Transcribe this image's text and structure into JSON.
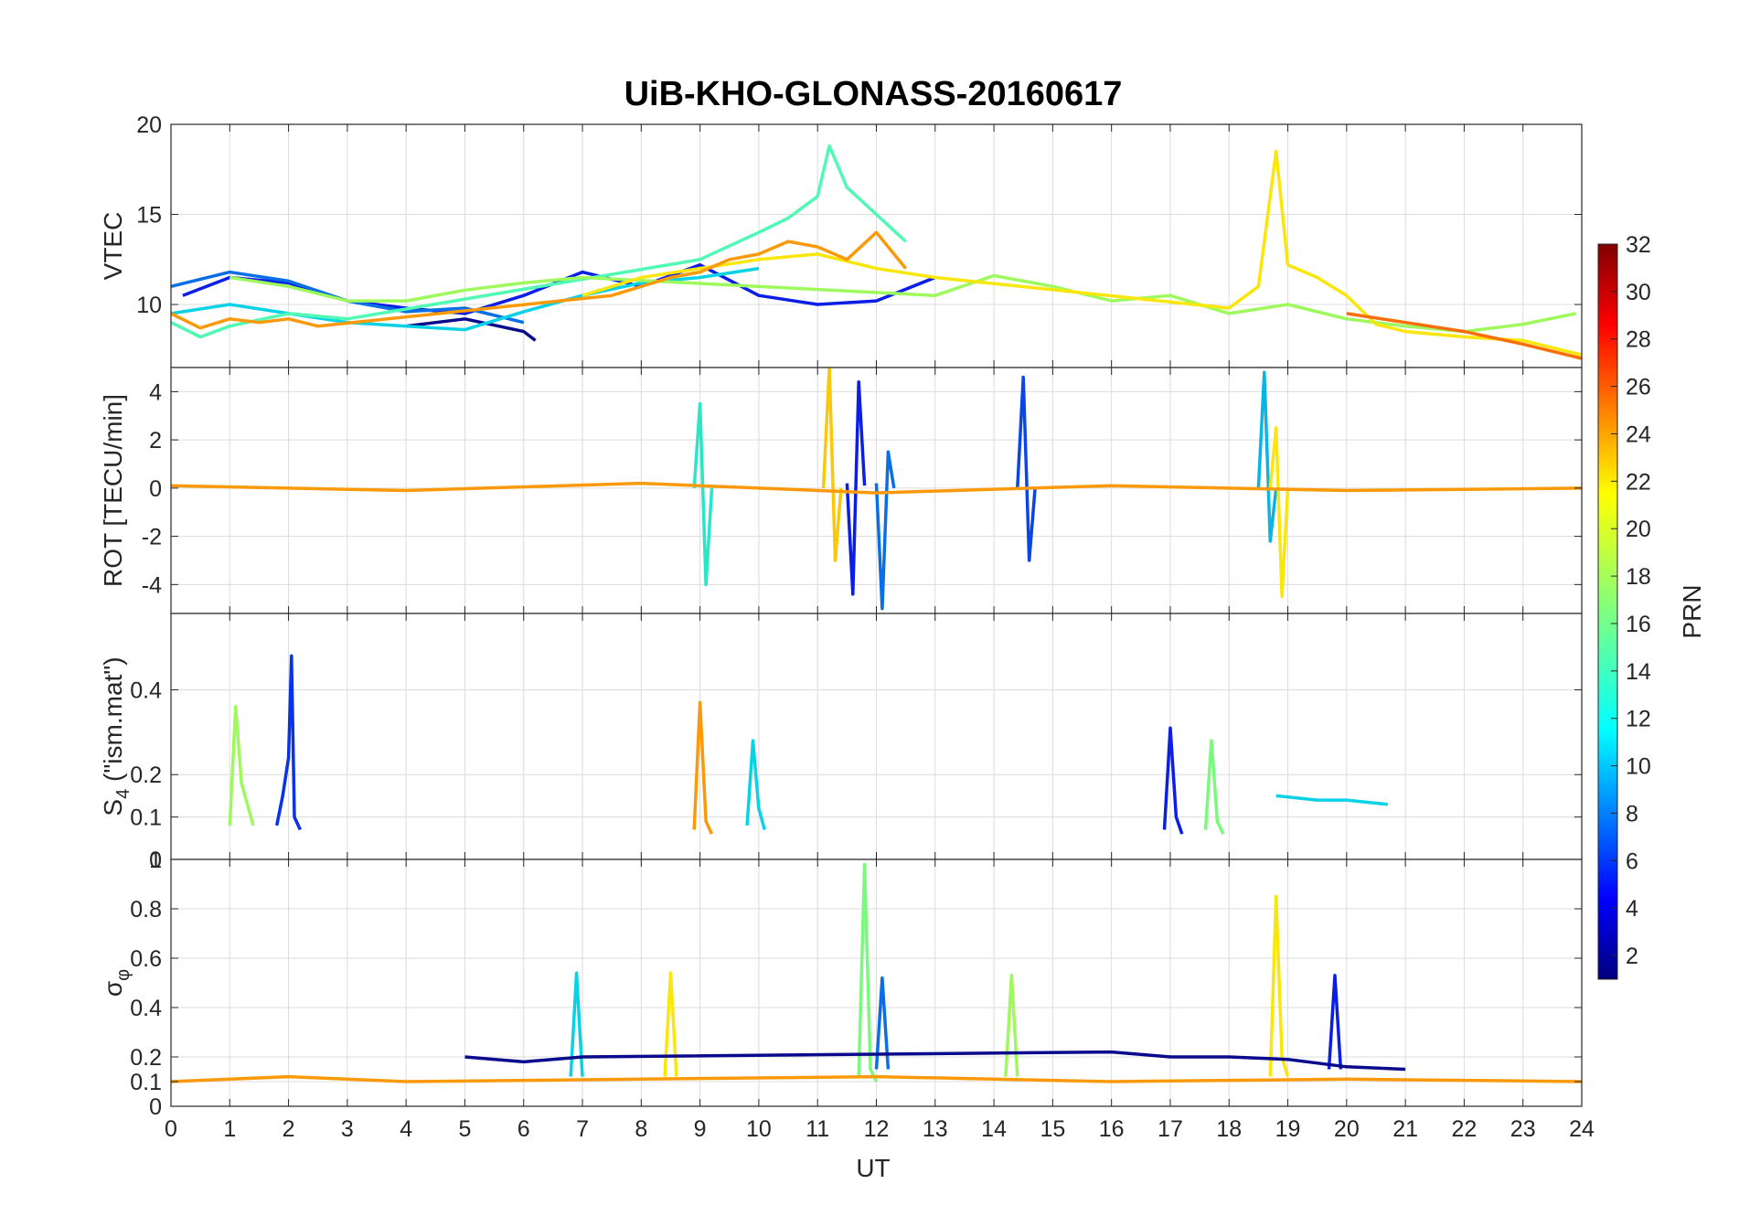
{
  "chart_data": {
    "type": "line",
    "title": "UiB-KHO-GLONASS-20160617",
    "xlabel": "UT",
    "xlim": [
      0,
      24
    ],
    "x_ticks": [
      "0",
      "1",
      "2",
      "3",
      "4",
      "5",
      "6",
      "7",
      "8",
      "9",
      "10",
      "11",
      "12",
      "13",
      "14",
      "15",
      "16",
      "17",
      "18",
      "19",
      "20",
      "21",
      "22",
      "23",
      "24"
    ],
    "grid": true,
    "colorbar": {
      "label": "PRN",
      "colormap": "jet",
      "range": [
        1,
        32
      ],
      "ticks": [
        "2",
        "4",
        "6",
        "8",
        "10",
        "12",
        "14",
        "16",
        "18",
        "20",
        "22",
        "24",
        "26",
        "28",
        "30",
        "32"
      ],
      "placement": "right"
    },
    "panels": [
      {
        "id": "vtec",
        "ylabel": "VTEC",
        "ylim": [
          6.5,
          20
        ],
        "y_ticks": [
          "10",
          "15",
          "20"
        ],
        "y_tick_values": [
          10,
          15,
          20
        ],
        "series": [
          {
            "prn": 3,
            "color": "#0a1ee6",
            "x": [
              0.2,
              1.0,
              2.0,
              3.0,
              4.0,
              5.0,
              6.0,
              7.0,
              8.0,
              9.0,
              10.0,
              11.0,
              12.0,
              13.0
            ],
            "y": [
              10.5,
              11.5,
              11.2,
              10.2,
              9.8,
              9.5,
              10.5,
              11.8,
              11.0,
              12.2,
              10.5,
              10.0,
              10.2,
              11.5
            ]
          },
          {
            "prn": 8,
            "color": "#0a6ee6",
            "x": [
              0.0,
              1.0,
              2.0,
              3.0,
              4.0,
              5.0,
              6.0
            ],
            "y": [
              11.0,
              11.8,
              11.3,
              10.2,
              9.6,
              9.8,
              9.0
            ]
          },
          {
            "prn": 1,
            "color": "#0a0a8c",
            "x": [
              4.0,
              5.0,
              6.0,
              6.2
            ],
            "y": [
              8.8,
              9.2,
              8.5,
              8.0
            ]
          },
          {
            "prn": 12,
            "color": "#0ad2e6",
            "x": [
              0.0,
              1.0,
              2.0,
              3.0,
              4.0,
              5.0,
              6.0,
              7.0,
              8.0,
              9.0,
              10.0
            ],
            "y": [
              9.5,
              10.0,
              9.5,
              9.0,
              8.8,
              8.6,
              9.6,
              10.5,
              11.2,
              11.5,
              12.0
            ]
          },
          {
            "prn": 15,
            "color": "#50fab4",
            "x": [
              0.0,
              0.5,
              1.0,
              2.0,
              3.0,
              9.0,
              10.0,
              10.5,
              11.0,
              11.2,
              11.5,
              12.0,
              12.5
            ],
            "y": [
              9.0,
              8.2,
              8.8,
              9.5,
              9.2,
              12.5,
              14.0,
              14.8,
              16.0,
              18.8,
              16.5,
              15.0,
              13.5
            ]
          },
          {
            "prn": 17,
            "color": "#9efa5c",
            "x": [
              1.0,
              2.0,
              3.0,
              4.0,
              5.0,
              6.0,
              7.0,
              13.0,
              14.0,
              15.0,
              16.0,
              17.0,
              18.0,
              19.0,
              20.0,
              21.0,
              22.0,
              23.0,
              23.9
            ],
            "y": [
              11.5,
              11.0,
              10.2,
              10.2,
              10.8,
              11.2,
              11.5,
              10.5,
              11.6,
              11.0,
              10.2,
              10.5,
              9.5,
              10.0,
              9.2,
              8.8,
              8.5,
              8.9,
              9.5
            ]
          },
          {
            "prn": 20,
            "color": "#fae60a",
            "x": [
              7.0,
              8.0,
              9.0,
              10.0,
              11.0,
              12.0,
              13.0,
              18.0,
              18.5,
              18.8,
              19.0,
              19.5,
              20.0,
              20.5,
              21.0,
              22.0,
              23.0,
              24.0
            ],
            "y": [
              10.5,
              11.5,
              12.0,
              12.5,
              12.8,
              12.0,
              11.5,
              9.8,
              11.0,
              18.5,
              12.2,
              11.5,
              10.5,
              8.9,
              8.5,
              8.2,
              8.0,
              7.2
            ]
          },
          {
            "prn": 23,
            "color": "#fa9a0a",
            "x": [
              0.0,
              0.5,
              1.0,
              1.5,
              2.0,
              2.5,
              7.5,
              8.5,
              9.0,
              9.5,
              10.0,
              10.5,
              11.0,
              11.5,
              12.0,
              12.5
            ],
            "y": [
              9.5,
              8.7,
              9.2,
              9.0,
              9.2,
              8.8,
              10.5,
              11.5,
              11.8,
              12.5,
              12.8,
              13.5,
              13.2,
              12.5,
              14.0,
              12.0
            ]
          },
          {
            "prn": 24,
            "color": "#fa6e0a",
            "x": [
              20.0,
              21.0,
              22.0,
              23.0,
              24.0
            ],
            "y": [
              9.5,
              9.0,
              8.5,
              7.8,
              7.0
            ]
          }
        ]
      },
      {
        "id": "rot",
        "ylabel": "ROT [TECU/min]",
        "ylim": [
          -5.2,
          5
        ],
        "y_ticks": [
          "-4",
          "-2",
          "0",
          "2",
          "4"
        ],
        "y_tick_values": [
          -4,
          -2,
          0,
          2,
          4
        ],
        "series": [
          {
            "prn": 3,
            "color": "#0a1ee6",
            "x": [
              11.5,
              11.6,
              11.7,
              11.8
            ],
            "y": [
              0.2,
              -4.4,
              4.4,
              0.1
            ]
          },
          {
            "prn": 8,
            "color": "#0a6ee6",
            "x": [
              12.0,
              12.1,
              12.2,
              12.3
            ],
            "y": [
              0.2,
              -5.0,
              1.5,
              0.0
            ]
          },
          {
            "prn": 6,
            "color": "#0a46e6",
            "x": [
              14.4,
              14.5,
              14.6,
              14.7
            ],
            "y": [
              0.0,
              4.6,
              -3.0,
              0.0
            ]
          },
          {
            "prn": 10,
            "color": "#0ab4e6",
            "x": [
              18.5,
              18.6,
              18.7,
              18.8
            ],
            "y": [
              0.0,
              4.8,
              -2.2,
              0.0
            ]
          },
          {
            "prn": 14,
            "color": "#2ae6c8",
            "x": [
              8.9,
              9.0,
              9.1,
              9.2
            ],
            "y": [
              0.0,
              3.5,
              -4.0,
              0.0
            ]
          },
          {
            "prn": 20,
            "color": "#fae60a",
            "x": [
              18.7,
              18.8,
              18.9,
              19.0
            ],
            "y": [
              0.0,
              2.5,
              -4.5,
              0.0
            ]
          },
          {
            "prn": 21,
            "color": "#fac80a",
            "x": [
              11.1,
              11.2,
              11.3,
              11.4
            ],
            "y": [
              0.0,
              5.0,
              -3.0,
              0.0
            ]
          },
          {
            "prn": 23,
            "color": "#fa9a0a",
            "x": [
              0.0,
              4.0,
              8.0,
              12.0,
              16.0,
              20.0,
              24.0
            ],
            "y": [
              0.1,
              -0.1,
              0.2,
              -0.2,
              0.1,
              -0.1,
              0.0
            ]
          }
        ]
      },
      {
        "id": "s4",
        "ylabel": "S",
        "ylabel_subscript": "4",
        "ylabel_suffix": " (\"ism.mat\")",
        "ylim": [
          0,
          0.58
        ],
        "y_ticks": [
          "0",
          "0.1",
          "0.2",
          "0.4"
        ],
        "y_tick_values": [
          0,
          0.1,
          0.2,
          0.4
        ],
        "series": [
          {
            "prn": 5,
            "color": "#0a32e6",
            "x": [
              1.8,
              1.9,
              2.0,
              2.05,
              2.1,
              2.2
            ],
            "y": [
              0.08,
              0.15,
              0.24,
              0.48,
              0.1,
              0.07
            ]
          },
          {
            "prn": 17,
            "color": "#9efa5c",
            "x": [
              1.0,
              1.1,
              1.2,
              1.4
            ],
            "y": [
              0.08,
              0.36,
              0.18,
              0.08
            ]
          },
          {
            "prn": 23,
            "color": "#fa9a0a",
            "x": [
              8.9,
              9.0,
              9.1,
              9.2
            ],
            "y": [
              0.07,
              0.37,
              0.09,
              0.06
            ]
          },
          {
            "prn": 12,
            "color": "#0ad2e6",
            "x": [
              9.8,
              9.9,
              10.0,
              10.1
            ],
            "y": [
              0.08,
              0.28,
              0.12,
              0.07
            ]
          },
          {
            "prn": 3,
            "color": "#0a1ee6",
            "x": [
              16.9,
              17.0,
              17.1,
              17.2
            ],
            "y": [
              0.07,
              0.31,
              0.1,
              0.06
            ]
          },
          {
            "prn": 16,
            "color": "#7afa7c",
            "x": [
              17.6,
              17.7,
              17.8,
              17.9
            ],
            "y": [
              0.07,
              0.28,
              0.09,
              0.06
            ]
          },
          {
            "prn": 12,
            "color": "#0ad2e6",
            "x": [
              18.8,
              19.5,
              20.0,
              20.7
            ],
            "y": [
              0.15,
              0.14,
              0.14,
              0.13
            ]
          }
        ]
      },
      {
        "id": "sigma_phi",
        "ylabel": "σ",
        "ylabel_subscript": "φ",
        "ylim": [
          0,
          1.0
        ],
        "y_ticks": [
          "0",
          "0.1",
          "0.2",
          "0.4",
          "0.6",
          "0.8",
          "1"
        ],
        "y_tick_values": [
          0,
          0.1,
          0.2,
          0.4,
          0.6,
          0.8,
          1.0
        ],
        "series": [
          {
            "prn": 16,
            "color": "#7afa7c",
            "x": [
              11.7,
              11.8,
              11.9,
              12.0
            ],
            "y": [
              0.12,
              0.98,
              0.15,
              0.1
            ]
          },
          {
            "prn": 20,
            "color": "#fae60a",
            "x": [
              18.7,
              18.8,
              18.9,
              19.0
            ],
            "y": [
              0.12,
              0.85,
              0.2,
              0.12
            ]
          },
          {
            "prn": 12,
            "color": "#0ad2e6",
            "x": [
              6.8,
              6.9,
              7.0
            ],
            "y": [
              0.12,
              0.54,
              0.12
            ]
          },
          {
            "prn": 20,
            "color": "#fae60a",
            "x": [
              8.4,
              8.5,
              8.6
            ],
            "y": [
              0.12,
              0.54,
              0.12
            ]
          },
          {
            "prn": 3,
            "color": "#0a1ee6",
            "x": [
              19.7,
              19.8,
              19.9
            ],
            "y": [
              0.15,
              0.53,
              0.15
            ]
          },
          {
            "prn": 17,
            "color": "#9efa5c",
            "x": [
              14.2,
              14.3,
              14.4
            ],
            "y": [
              0.12,
              0.53,
              0.12
            ]
          },
          {
            "prn": 8,
            "color": "#0a6ee6",
            "x": [
              12.0,
              12.1,
              12.2
            ],
            "y": [
              0.15,
              0.52,
              0.15
            ]
          },
          {
            "prn": 1,
            "color": "#0a0a8c",
            "x": [
              5.0,
              6.0,
              7.0,
              16.0,
              17.0,
              18.0,
              19.0,
              20.0,
              21.0
            ],
            "y": [
              0.2,
              0.18,
              0.2,
              0.22,
              0.2,
              0.2,
              0.19,
              0.16,
              0.15
            ]
          },
          {
            "prn": 23,
            "color": "#fa9a0a",
            "x": [
              0.0,
              2.0,
              4.0,
              8.0,
              12.0,
              16.0,
              20.0,
              24.0
            ],
            "y": [
              0.1,
              0.12,
              0.1,
              0.11,
              0.12,
              0.1,
              0.11,
              0.1
            ]
          }
        ]
      }
    ]
  }
}
